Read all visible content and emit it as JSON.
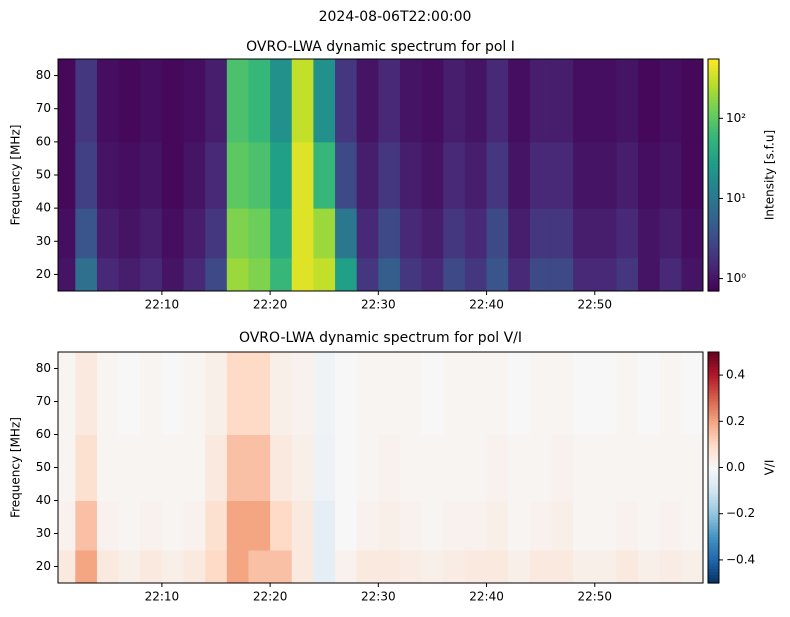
{
  "title": "2024-08-06T22:00:00",
  "chart_data": [
    {
      "type": "heatmap",
      "title": "OVRO-LWA dynamic spectrum for pol I",
      "ylabel": "Frequency [MHz]",
      "colorbar_label": "Intensity [s.f.u]",
      "colormap": "viridis",
      "log_color": true,
      "x": [
        1,
        3,
        5,
        7,
        9,
        11,
        13,
        15,
        17,
        19,
        21,
        23,
        25,
        27,
        29,
        31,
        33,
        35,
        37,
        39,
        41,
        43,
        45,
        47,
        49,
        51,
        53,
        55,
        57,
        59
      ],
      "ybins": [
        15,
        25,
        40,
        60,
        85
      ],
      "values": [
        [
          1,
          8,
          1.5,
          1.2,
          1.5,
          1,
          1.5,
          3,
          200,
          150,
          60,
          400,
          300,
          30,
          2,
          5,
          2,
          1.5,
          3,
          2,
          4,
          1.5,
          3,
          3,
          1.5,
          1.5,
          2,
          1,
          1.5,
          1
        ],
        [
          0.9,
          4,
          1.2,
          1,
          1.2,
          0.9,
          1.2,
          2,
          150,
          120,
          40,
          400,
          200,
          10,
          1.5,
          3,
          1.5,
          1.2,
          2,
          1.5,
          3,
          1.2,
          2,
          2,
          1.2,
          1.2,
          1.5,
          1,
          1.2,
          0.9
        ],
        [
          0.8,
          2.5,
          1,
          0.9,
          1,
          0.8,
          1,
          1.5,
          100,
          80,
          30,
          400,
          60,
          3,
          1.2,
          2,
          1.2,
          1,
          1.5,
          1.2,
          2,
          1,
          1.5,
          1.5,
          1,
          1,
          1.2,
          0.9,
          1,
          0.8
        ],
        [
          0.8,
          2,
          0.9,
          0.8,
          0.9,
          0.8,
          0.9,
          1.2,
          80,
          60,
          20,
          300,
          20,
          2,
          1,
          1.5,
          1,
          0.9,
          1.2,
          1,
          1.5,
          0.9,
          1.2,
          1.2,
          0.9,
          0.9,
          1,
          0.8,
          0.9,
          0.8
        ]
      ],
      "xlim": [
        0.4,
        60
      ],
      "ylim": [
        15,
        85
      ],
      "xticks": [
        {
          "value": 10,
          "label": "22:10"
        },
        {
          "value": 20,
          "label": "22:20"
        },
        {
          "value": 30,
          "label": "22:30"
        },
        {
          "value": 40,
          "label": "22:40"
        },
        {
          "value": 50,
          "label": "22:50"
        }
      ],
      "yticks": [
        20,
        30,
        40,
        50,
        60,
        70,
        80
      ],
      "clim": [
        0.7,
        550
      ],
      "cticks": [
        {
          "value": 1,
          "label": "10⁰"
        },
        {
          "value": 10,
          "label": "10¹"
        },
        {
          "value": 100,
          "label": "10²"
        }
      ]
    },
    {
      "type": "heatmap",
      "title": "OVRO-LWA dynamic spectrum for pol V/I",
      "ylabel": "Frequency [MHz]",
      "colorbar_label": "V/I",
      "colormap": "RdBu_r",
      "log_color": false,
      "x": [
        1,
        3,
        5,
        7,
        9,
        11,
        13,
        15,
        17,
        19,
        21,
        23,
        25,
        27,
        29,
        31,
        33,
        35,
        37,
        39,
        41,
        43,
        45,
        47,
        49,
        51,
        53,
        55,
        57,
        59
      ],
      "ybins": [
        15,
        25,
        40,
        60,
        85
      ],
      "values": [
        [
          0.05,
          0.2,
          0.05,
          0.03,
          0.05,
          0.03,
          0.05,
          0.1,
          0.2,
          0.15,
          0.15,
          0.05,
          -0.05,
          0.02,
          0.05,
          0.05,
          0.04,
          0.03,
          0.04,
          0.05,
          0.05,
          0.03,
          0.05,
          0.05,
          0.03,
          0.03,
          0.05,
          0.03,
          0.04,
          0.03
        ],
        [
          0.02,
          0.15,
          0.02,
          0.01,
          0.02,
          0.01,
          0.02,
          0.08,
          0.2,
          0.2,
          0.1,
          0.05,
          -0.05,
          0,
          0.02,
          0.03,
          0.02,
          0.01,
          0.02,
          0.02,
          0.03,
          0.01,
          0.02,
          0.03,
          0.01,
          0.01,
          0.02,
          0.01,
          0.02,
          0.01
        ],
        [
          0.01,
          0.08,
          0.01,
          0.01,
          0.01,
          0.01,
          0.01,
          0.05,
          0.15,
          0.15,
          0.05,
          0.03,
          -0.03,
          0,
          0.01,
          0.02,
          0.01,
          0.01,
          0.01,
          0.01,
          0.02,
          0.01,
          0.01,
          0.02,
          0.01,
          0.01,
          0.01,
          0.01,
          0.01,
          0.01
        ],
        [
          0.01,
          0.05,
          0.01,
          0,
          0.01,
          0,
          0.01,
          0.03,
          0.1,
          0.1,
          0.03,
          0.02,
          -0.02,
          0,
          0.01,
          0.01,
          0.01,
          0,
          0.01,
          0.01,
          0.01,
          0,
          0.01,
          0.01,
          0,
          0,
          0.01,
          0,
          0.01,
          0
        ]
      ],
      "xlim": [
        0.4,
        60
      ],
      "ylim": [
        15,
        85
      ],
      "xticks": [
        {
          "value": 10,
          "label": "22:10"
        },
        {
          "value": 20,
          "label": "22:20"
        },
        {
          "value": 30,
          "label": "22:30"
        },
        {
          "value": 40,
          "label": "22:40"
        },
        {
          "value": 50,
          "label": "22:50"
        }
      ],
      "yticks": [
        20,
        30,
        40,
        50,
        60,
        70,
        80
      ],
      "clim": [
        -0.5,
        0.5
      ],
      "cticks": [
        {
          "value": 0.4,
          "label": "0.4"
        },
        {
          "value": 0.2,
          "label": "0.2"
        },
        {
          "value": 0,
          "label": "0.0"
        },
        {
          "value": -0.2,
          "label": "−0.2"
        },
        {
          "value": -0.4,
          "label": "−0.4"
        }
      ]
    }
  ]
}
